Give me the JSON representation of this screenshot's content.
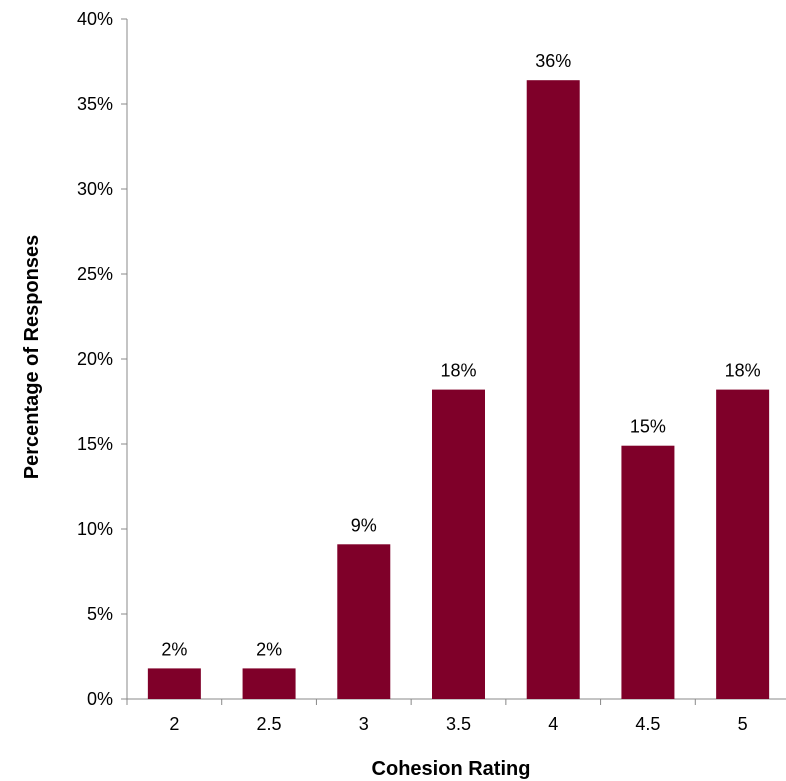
{
  "chart_data": {
    "type": "bar",
    "categories": [
      "2",
      "2.5",
      "3",
      "3.5",
      "4",
      "4.5",
      "5"
    ],
    "values": [
      1.8,
      1.8,
      9.1,
      18.2,
      36.4,
      14.9,
      18.2
    ],
    "data_labels": [
      "2%",
      "2%",
      "9%",
      "18%",
      "36%",
      "15%",
      "18%"
    ],
    "xlabel": "Cohesion Rating",
    "ylabel": "Percentage of Responses",
    "ylim": [
      0,
      40
    ],
    "yticks": [
      0,
      5,
      10,
      15,
      20,
      25,
      30,
      35,
      40
    ],
    "ytick_labels": [
      "0%",
      "5%",
      "10%",
      "15%",
      "20%",
      "25%",
      "30%",
      "35%",
      "40%"
    ],
    "grid": false,
    "legend": "none",
    "colors": {
      "bar": "#7f0029",
      "axis": "#888888",
      "text": "#000000"
    }
  }
}
